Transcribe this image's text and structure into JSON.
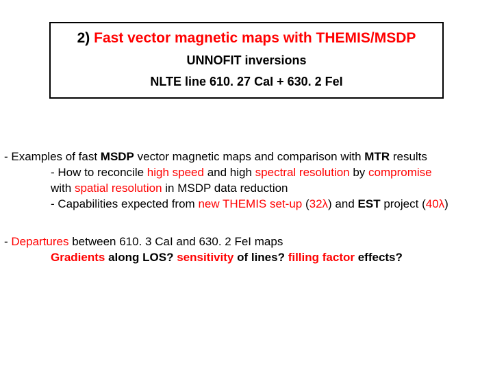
{
  "colors": {
    "red": "#ff0000",
    "black": "#000000",
    "background": "#ffffff",
    "border": "#000000"
  },
  "typography": {
    "family": "Arial",
    "title_size_pt": 21,
    "subtitle_size_pt": 18,
    "body_size_pt": 17,
    "title_weight": "bold",
    "body_weight": "normal"
  },
  "title_box": {
    "line1_prefix": "2)",
    "line1_main": " Fast vector magnetic maps with THEMIS/MSDP",
    "line2": "UNNOFIT inversions",
    "line3": "NLTE line 610. 27 CaI  +  630. 2 FeI"
  },
  "block1": {
    "l1_a": "- Examples of fast ",
    "l1_b": "MSDP",
    "l1_c": " vector magnetic maps and comparison with ",
    "l1_d": "MTR",
    "l1_e": " results",
    "l2_a": "- How to reconcile ",
    "l2_b": "high speed",
    "l2_c": " and high ",
    "l2_d": "spectral resolution",
    "l2_e": " by ",
    "l2_f": "compromise",
    "l3_a": "with ",
    "l3_b": "spatial resolution",
    "l3_c": " in MSDP data reduction",
    "l4_a": "- Capabilities expected from ",
    "l4_b": "new THEMIS set-up",
    "l4_c": " (",
    "l4_d": "32",
    "l4_e": ") and ",
    "l4_f": "EST",
    "l4_g": " project (",
    "l4_h": "40",
    "l4_i": ")"
  },
  "block2": {
    "l1_a": "- ",
    "l1_b": "Departures",
    "l1_c": " between 610. 3 CaI and 630. 2 FeI maps",
    "l2_a": "Gradients",
    "l2_b": " along LOS?  ",
    "l2_c": "sensitivity",
    "l2_d": " of lines?   ",
    "l2_e": "filling factor",
    "l2_f": " effects?"
  },
  "lambda": "λ"
}
